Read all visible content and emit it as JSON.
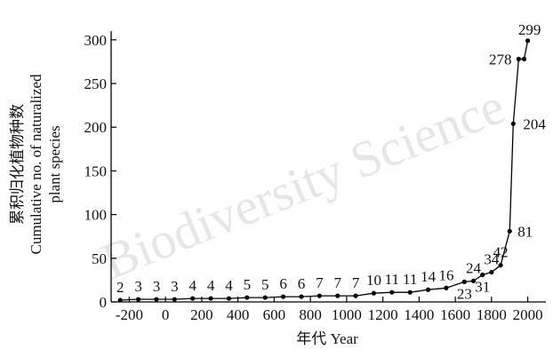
{
  "chart_data": {
    "type": "line",
    "x": [
      -250,
      -150,
      -50,
      50,
      150,
      250,
      350,
      450,
      550,
      650,
      750,
      850,
      950,
      1050,
      1150,
      1250,
      1350,
      1450,
      1550,
      1650,
      1700,
      1750,
      1800,
      1850,
      1900,
      1920,
      1950,
      1980,
      2000
    ],
    "values": [
      2,
      3,
      3,
      3,
      4,
      4,
      4,
      5,
      5,
      6,
      6,
      7,
      7,
      7,
      10,
      11,
      11,
      14,
      16,
      23,
      24,
      31,
      34,
      42,
      81,
      204,
      278,
      278,
      299
    ],
    "point_labels": [
      "2",
      "3",
      "3",
      "3",
      "4",
      "4",
      "4",
      "5",
      "5",
      "6",
      "6",
      "7",
      "7",
      "7",
      "10",
      "11",
      "11",
      "14",
      "16",
      "23",
      "24",
      "31",
      "34",
      "42",
      "81",
      "204",
      "278",
      "",
      "299"
    ],
    "x_ticks": [
      "-200",
      "0",
      "200",
      "400",
      "600",
      "800",
      "1000",
      "1200",
      "1400",
      "1600",
      "1800",
      "2000"
    ],
    "x_tick_values": [
      -200,
      0,
      200,
      400,
      600,
      800,
      1000,
      1200,
      1400,
      1600,
      1800,
      2000
    ],
    "y_ticks": [
      "0",
      "50",
      "100",
      "150",
      "200",
      "250",
      "300"
    ],
    "y_tick_values": [
      0,
      50,
      100,
      150,
      200,
      250,
      300
    ],
    "xlim": [
      -300,
      2100
    ],
    "ylim": [
      0,
      310
    ],
    "xlabel": "年代 Year",
    "ylabel": [
      "累积归化植物种数",
      "Cumulative no. of naturalized",
      "plant species"
    ],
    "grid": false,
    "line_color": "#000000"
  },
  "watermark": "Biodiversity Science"
}
